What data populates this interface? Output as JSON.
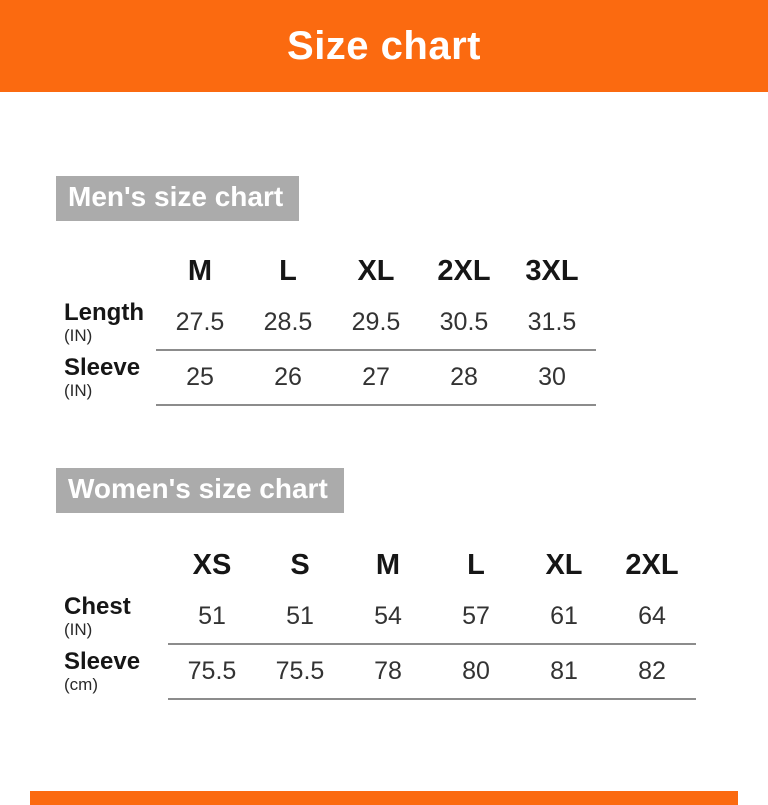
{
  "page": {
    "title": "Size chart",
    "colors": {
      "accent": "#FB6A10",
      "heading_bg": "#ABABAB",
      "rule_line": "#8C8C8C"
    }
  },
  "sections": [
    {
      "heading": "Men's size chart",
      "columns": [
        "M",
        "L",
        "XL",
        "2XL",
        "3XL"
      ],
      "rows": [
        {
          "label": "Length",
          "unit": "(IN)",
          "values": [
            "27.5",
            "28.5",
            "29.5",
            "30.5",
            "31.5"
          ]
        },
        {
          "label": "Sleeve",
          "unit": "(IN)",
          "values": [
            "25",
            "26",
            "27",
            "28",
            "30"
          ]
        }
      ]
    },
    {
      "heading": "Women's size chart",
      "columns": [
        "XS",
        "S",
        "M",
        "L",
        "XL",
        "2XL"
      ],
      "rows": [
        {
          "label": "Chest",
          "unit": "(IN)",
          "values": [
            "51",
            "51",
            "54",
            "57",
            "61",
            "64"
          ]
        },
        {
          "label": "Sleeve",
          "unit": "(cm)",
          "values": [
            "75.5",
            "75.5",
            "78",
            "80",
            "81",
            "82"
          ]
        }
      ]
    }
  ],
  "chart_data": [
    {
      "type": "table",
      "title": "Men's size chart",
      "columns": [
        "M",
        "L",
        "XL",
        "2XL",
        "3XL"
      ],
      "rows": [
        {
          "label": "Length (IN)",
          "values": [
            27.5,
            28.5,
            29.5,
            30.5,
            31.5
          ]
        },
        {
          "label": "Sleeve (IN)",
          "values": [
            25,
            26,
            27,
            28,
            30
          ]
        }
      ]
    },
    {
      "type": "table",
      "title": "Women's size chart",
      "columns": [
        "XS",
        "S",
        "M",
        "L",
        "XL",
        "2XL"
      ],
      "rows": [
        {
          "label": "Chest (IN)",
          "values": [
            51,
            51,
            54,
            57,
            61,
            64
          ]
        },
        {
          "label": "Sleeve (cm)",
          "values": [
            75.5,
            75.5,
            78,
            80,
            81,
            82
          ]
        }
      ]
    }
  ]
}
